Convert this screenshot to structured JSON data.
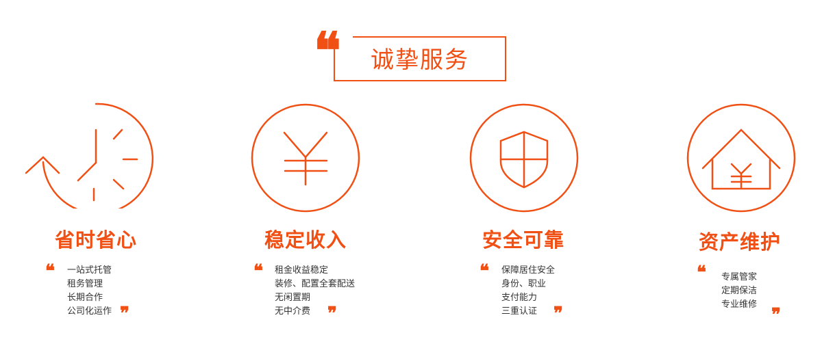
{
  "header": {
    "title": "诚挚服务",
    "quote_open": "❝",
    "accent_color": "#f05014"
  },
  "features": [
    {
      "icon": "clock-icon",
      "title": "省时省心",
      "items": [
        "一站式托管",
        "租务管理",
        "长期合作",
        "公司化运作"
      ]
    },
    {
      "icon": "yuan-icon",
      "title": "稳定收入",
      "items": [
        "租金收益稳定",
        "装修、配置全套配送",
        "无闲置期",
        "无中介费"
      ]
    },
    {
      "icon": "shield-icon",
      "title": "安全可靠",
      "items": [
        "保障居住安全",
        "身份、职业",
        "支付能力",
        "三重认证"
      ]
    },
    {
      "icon": "house-yuan-icon",
      "title": "资产维护",
      "items": [
        "专属管家",
        "定期保洁",
        "专业维修"
      ]
    }
  ],
  "quote_marks": {
    "open": "❝",
    "close": "❞"
  }
}
